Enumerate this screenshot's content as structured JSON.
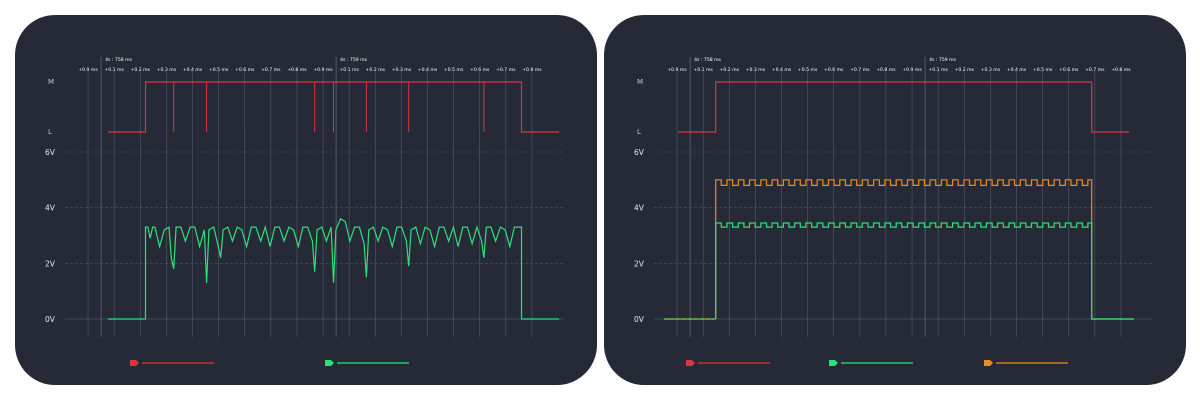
{
  "colors": {
    "background": "#252a36",
    "digital": "#d9363e",
    "analog_green": "#2ee07a",
    "analog_orange": "#f08a1c",
    "grid": "#5f6676",
    "grid_dashed": "#4d5463",
    "label": "#e4e7ee"
  },
  "icons": {
    "legend_marker": "probe-tag-icon"
  },
  "chart_data": [
    {
      "type": "line",
      "panel": "left",
      "time_markers": [
        "4s : 758 ms",
        "4s : 759 ms"
      ],
      "time_ticks": [
        "+0.9 ms",
        "+0.1 ms",
        "+0.2 ms",
        "+0.3 ms",
        "+0.4 ms",
        "+0.5 ms",
        "+0.6 ms",
        "+0.7 ms",
        "+0.8 ms",
        "+0.9 ms",
        "+0.1 ms",
        "+0.2 ms",
        "+0.3 ms",
        "+0.4 ms",
        "+0.5 ms",
        "+0.6 ms",
        "+0.7 ms",
        "+0.8 ms"
      ],
      "digital": {
        "level_labels": [
          "M",
          "L"
        ],
        "edges": [
          {
            "x": 0.7,
            "level": "L"
          },
          {
            "x": 1.5,
            "level": "M"
          },
          {
            "x": 9.5,
            "level": "L"
          },
          {
            "x": 10.3,
            "level": "L"
          }
        ],
        "glitches_to_L": [
          2.1,
          2.8,
          5.1,
          5.5,
          6.2,
          7.1,
          8.7
        ]
      },
      "analog_axis": {
        "ylim": [
          0,
          6
        ],
        "ticks": [
          "6V",
          "4V",
          "2V",
          "0V"
        ],
        "grid": true
      },
      "series": [
        {
          "color": "#2ee07a",
          "x": [
            0.7,
            1.5,
            1.5,
            1.55,
            1.6,
            1.65,
            1.7,
            1.8,
            1.9,
            2.0,
            2.05,
            2.1,
            2.15,
            2.25,
            2.35,
            2.45,
            2.55,
            2.65,
            2.75,
            2.8,
            2.85,
            2.95,
            3.05,
            3.1,
            3.15,
            3.25,
            3.35,
            3.45,
            3.55,
            3.65,
            3.75,
            3.85,
            3.95,
            4.05,
            4.15,
            4.25,
            4.35,
            4.45,
            4.55,
            4.65,
            4.75,
            4.85,
            4.95,
            5.05,
            5.1,
            5.15,
            5.25,
            5.35,
            5.45,
            5.5,
            5.55,
            5.65,
            5.75,
            5.85,
            5.95,
            6.05,
            6.15,
            6.2,
            6.25,
            6.35,
            6.45,
            6.55,
            6.65,
            6.75,
            6.85,
            6.95,
            7.05,
            7.1,
            7.15,
            7.25,
            7.35,
            7.45,
            7.55,
            7.65,
            7.75,
            7.85,
            7.95,
            8.05,
            8.15,
            8.25,
            8.35,
            8.45,
            8.55,
            8.65,
            8.7,
            8.75,
            8.85,
            8.95,
            9.05,
            9.15,
            9.25,
            9.35,
            9.45,
            9.5,
            9.5,
            10.3
          ],
          "values": [
            0,
            0,
            3.3,
            3.3,
            2.9,
            3.3,
            3.3,
            2.6,
            3.2,
            3.3,
            2.2,
            1.8,
            3.3,
            3.3,
            2.8,
            3.3,
            3.3,
            2.6,
            3.2,
            1.3,
            3.2,
            3.3,
            2.6,
            2.2,
            3.2,
            3.3,
            2.8,
            3.3,
            3.2,
            2.6,
            3.3,
            3.3,
            2.8,
            3.3,
            2.6,
            3.3,
            3.3,
            2.8,
            3.3,
            3.2,
            2.6,
            3.3,
            3.3,
            2.8,
            1.7,
            3.2,
            3.3,
            2.8,
            3.3,
            1.3,
            3.2,
            3.6,
            3.5,
            2.8,
            3.3,
            3.3,
            2.7,
            1.5,
            3.2,
            3.3,
            2.8,
            3.3,
            3.2,
            2.6,
            3.3,
            3.3,
            2.8,
            1.9,
            3.2,
            3.3,
            2.7,
            3.3,
            3.2,
            2.6,
            3.3,
            3.3,
            2.8,
            3.3,
            2.6,
            3.3,
            3.3,
            2.7,
            3.3,
            2.8,
            2.2,
            3.3,
            3.3,
            2.8,
            3.3,
            3.2,
            2.6,
            3.3,
            3.3,
            3.3,
            0,
            0
          ]
        }
      ]
    },
    {
      "type": "line",
      "panel": "right",
      "time_markers": [
        "4s : 758 ms",
        "4s : 759 ms"
      ],
      "time_ticks": [
        "+0.9 ms",
        "+0.1 ms",
        "+0.2 ms",
        "+0.3 ms",
        "+0.4 ms",
        "+0.5 ms",
        "+0.6 ms",
        "+0.7 ms",
        "+0.8 ms",
        "+0.9 ms",
        "+0.1 ms",
        "+0.2 ms",
        "+0.3 ms",
        "+0.4 ms",
        "+0.5 ms",
        "+0.6 ms",
        "+0.7 ms",
        "+0.8 ms"
      ],
      "digital": {
        "level_labels": [
          "M",
          "L"
        ],
        "edges": [
          {
            "x": 0.3,
            "level": "L"
          },
          {
            "x": 1.1,
            "level": "M"
          },
          {
            "x": 9.1,
            "level": "L"
          },
          {
            "x": 9.9,
            "level": "L"
          }
        ],
        "glitches_to_L": []
      },
      "analog_axis": {
        "ylim": [
          0,
          6
        ],
        "ticks": [
          "6V",
          "4V",
          "2V",
          "0V"
        ],
        "grid": true
      },
      "series": [
        {
          "color": "#f08a1c",
          "x_start": 0.0,
          "x_end": 10.0,
          "high_start": 1.1,
          "high_end": 9.1,
          "high": 5.0,
          "ripple": 0.2,
          "ripple_period": 0.24,
          "dashed_low": false
        },
        {
          "color": "#2ee07a",
          "x_start": 0.0,
          "x_end": 10.0,
          "high_start": 1.1,
          "high_end": 9.1,
          "high": 3.45,
          "ripple": 0.15,
          "ripple_period": 0.24,
          "dashed_low": true
        }
      ]
    }
  ],
  "legend": {
    "left": [
      {
        "color": "#d9363e"
      },
      {
        "color": "#2ee07a"
      }
    ],
    "right": [
      {
        "color": "#d9363e"
      },
      {
        "color": "#2ee07a"
      },
      {
        "color": "#f08a1c"
      }
    ]
  }
}
